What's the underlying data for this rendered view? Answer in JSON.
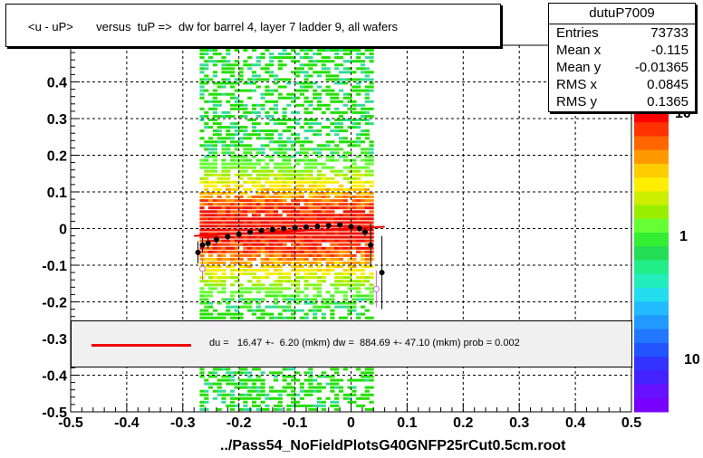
{
  "chart_data": {
    "type": "scatter",
    "title": "<u - uP>       versus  tuP =>  dw for barrel 4, layer 7 ladder 9, all wafers",
    "xlim": [
      -0.5,
      0.5
    ],
    "ylim": [
      -0.5,
      0.5
    ],
    "x_ticks": [
      "-0.5",
      "-0.4",
      "-0.3",
      "-0.2",
      "-0.1",
      "0",
      "0.1",
      "0.2",
      "0.3",
      "0.4",
      "0.5"
    ],
    "y_ticks": [
      "-0.5",
      "-0.4",
      "-0.3",
      "-0.2",
      "-0.1",
      "0",
      "0.1",
      "0.2",
      "0.3",
      "0.4"
    ],
    "grid": true,
    "colorbar_labels": [
      "10",
      "1",
      "10"
    ],
    "histogram_x_range": [
      -0.27,
      0.04
    ],
    "profile_points": {
      "x": [
        -0.273,
        -0.265,
        -0.255,
        -0.24,
        -0.22,
        -0.2,
        -0.18,
        -0.16,
        -0.14,
        -0.12,
        -0.1,
        -0.08,
        -0.06,
        -0.04,
        -0.02,
        0.0,
        0.015,
        0.025,
        0.035,
        0.055
      ],
      "y": [
        -0.065,
        -0.045,
        -0.04,
        -0.03,
        -0.022,
        -0.015,
        -0.01,
        -0.006,
        -0.003,
        0.0,
        0.002,
        0.004,
        0.006,
        0.008,
        0.01,
        0.005,
        0.0,
        -0.01,
        -0.045,
        -0.12
      ],
      "yerr": [
        0.03,
        0.02,
        0.015,
        0.01,
        0.008,
        0.006,
        0.005,
        0.005,
        0.005,
        0.005,
        0.005,
        0.005,
        0.005,
        0.005,
        0.006,
        0.006,
        0.008,
        0.01,
        0.06,
        0.1
      ]
    },
    "open_points": {
      "x": [
        -0.265,
        0.045
      ],
      "y": [
        -0.11,
        -0.165
      ],
      "yerr": [
        0.03,
        0.05
      ]
    },
    "fit_line": {
      "x": [
        -0.28,
        0.06
      ],
      "y": [
        -0.02,
        0.005
      ],
      "color": "#ee0000"
    }
  },
  "stats": {
    "title": "dutuP7009",
    "rows": [
      {
        "key": "Entries",
        "value": "73733"
      },
      {
        "key": "Mean x",
        "value": "-0.115"
      },
      {
        "key": "Mean y",
        "value": "-0.01365"
      },
      {
        "key": "RMS x",
        "value": "0.0845"
      },
      {
        "key": "RMS y",
        "value": "0.1365"
      }
    ]
  },
  "fit_text": "du =   16.47 +-  6.20 (mkm) dw =  884.69 +- 47.10 (mkm) prob = 0.002",
  "footer": "../Pass54_NoFieldPlotsG40GNFP25rCut0.5cm.root"
}
